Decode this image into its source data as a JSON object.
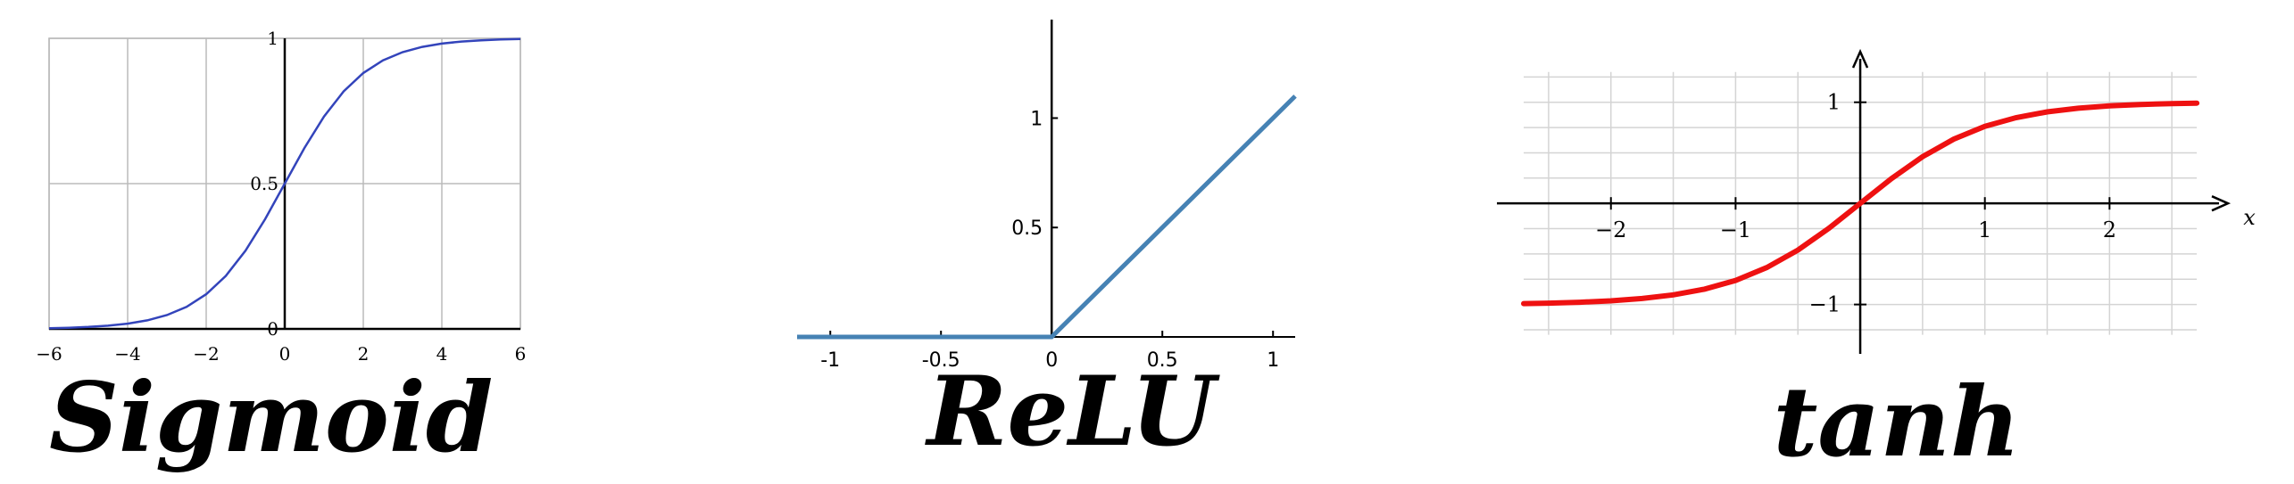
{
  "chart_data": [
    {
      "type": "line",
      "title": "Sigmoid",
      "x": [
        -6,
        -5.5,
        -5,
        -4.5,
        -4,
        -3.5,
        -3,
        -2.5,
        -2,
        -1.5,
        -1,
        -0.5,
        0,
        0.5,
        1,
        1.5,
        2,
        2.5,
        3,
        3.5,
        4,
        4.5,
        5,
        5.5,
        6
      ],
      "series": [
        {
          "values": [
            0.0025,
            0.0041,
            0.0067,
            0.011,
            0.018,
            0.0293,
            0.0474,
            0.0759,
            0.1192,
            0.1824,
            0.2689,
            0.3775,
            0.5,
            0.6225,
            0.7311,
            0.8176,
            0.8808,
            0.9241,
            0.9526,
            0.9707,
            0.982,
            0.989,
            0.9933,
            0.9959,
            0.9975
          ]
        }
      ],
      "xlim": [
        -6,
        6
      ],
      "ylim": [
        0,
        1
      ],
      "xticks": [
        -6,
        -4,
        -2,
        0,
        2,
        4,
        6
      ],
      "xtick_labels": [
        "−6",
        "−4",
        "−2",
        "0",
        "2",
        "4",
        "6"
      ],
      "yticks": [
        0,
        0.5,
        1
      ],
      "ytick_labels": [
        "0",
        "0.5",
        "1"
      ],
      "grid": true,
      "color": "#3344bb"
    },
    {
      "type": "line",
      "title": "ReLU",
      "x": [
        -1.15,
        0,
        1.1
      ],
      "series": [
        {
          "values": [
            0,
            0,
            1.1
          ]
        }
      ],
      "xlim": [
        -1.15,
        1.1
      ],
      "ylim": [
        0,
        1.45
      ],
      "xticks": [
        -1,
        -0.5,
        0,
        0.5,
        1
      ],
      "xtick_labels": [
        "-1",
        "-0.5",
        "0",
        "0.5",
        "1"
      ],
      "yticks": [
        0.5,
        1
      ],
      "ytick_labels": [
        "0.5",
        "1"
      ],
      "grid": false,
      "color": "#4682b4"
    },
    {
      "type": "line",
      "title": "tanh",
      "x": [
        -2.7,
        -2.5,
        -2.25,
        -2,
        -1.75,
        -1.5,
        -1.25,
        -1,
        -0.75,
        -0.5,
        -0.25,
        0,
        0.25,
        0.5,
        0.75,
        1,
        1.25,
        1.5,
        1.75,
        2,
        2.25,
        2.5,
        2.7
      ],
      "series": [
        {
          "values": [
            -0.991,
            -0.987,
            -0.978,
            -0.964,
            -0.941,
            -0.905,
            -0.848,
            -0.762,
            -0.635,
            -0.462,
            -0.245,
            0,
            0.245,
            0.462,
            0.635,
            0.762,
            0.848,
            0.905,
            0.941,
            0.964,
            0.978,
            0.987,
            0.991
          ]
        }
      ],
      "xlim": [
        -2.7,
        2.95
      ],
      "ylim": [
        -1.4,
        1.5
      ],
      "xticks": [
        -2,
        -1,
        1,
        2
      ],
      "xtick_labels": [
        "−2",
        "−1",
        "1",
        "2"
      ],
      "yticks": [
        -1,
        1
      ],
      "ytick_labels": [
        "−1",
        "1"
      ],
      "xlabel": "x",
      "grid": true,
      "color": "#ee1111"
    }
  ]
}
